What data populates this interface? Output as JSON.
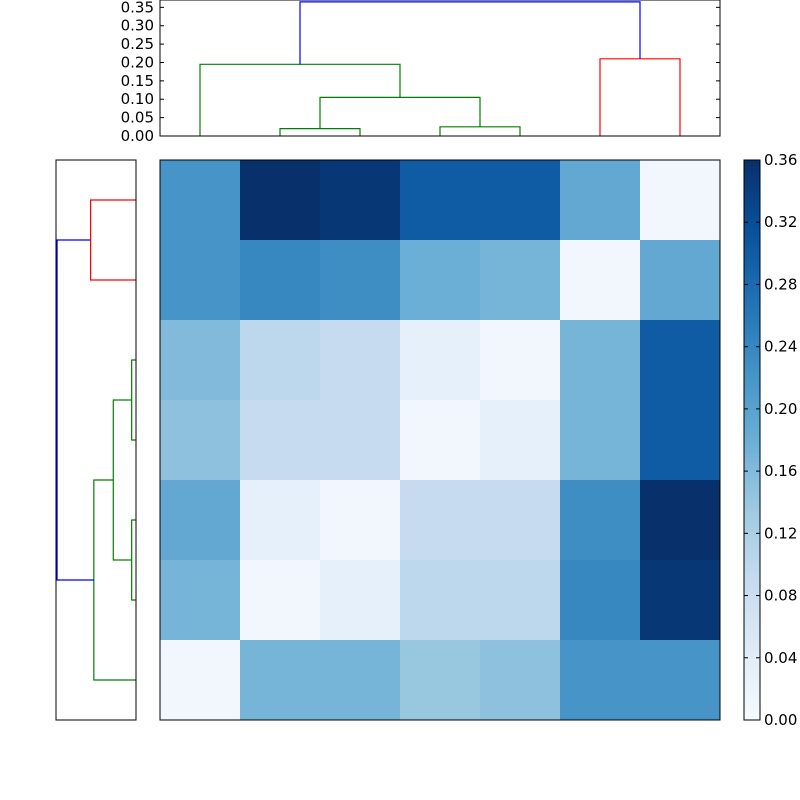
{
  "chart_data": [
    {
      "type": "heatmap",
      "title": "",
      "colormap": "Blues",
      "vmin": 0.0,
      "vmax": 0.36,
      "rows": 7,
      "cols": 7,
      "values": [
        [
          0.22,
          0.36,
          0.35,
          0.3,
          0.3,
          0.19,
          0.01
        ],
        [
          0.22,
          0.24,
          0.23,
          0.18,
          0.17,
          0.01,
          0.19
        ],
        [
          0.16,
          0.1,
          0.09,
          0.03,
          0.01,
          0.17,
          0.3
        ],
        [
          0.15,
          0.09,
          0.09,
          0.01,
          0.03,
          0.17,
          0.3
        ],
        [
          0.19,
          0.03,
          0.01,
          0.09,
          0.09,
          0.23,
          0.36
        ],
        [
          0.17,
          0.01,
          0.03,
          0.1,
          0.1,
          0.24,
          0.35
        ],
        [
          0.01,
          0.17,
          0.17,
          0.14,
          0.15,
          0.22,
          0.22
        ]
      ]
    },
    {
      "type": "dendrogram",
      "orientation": "top",
      "ylim": [
        0,
        0.37
      ],
      "yticks": [
        "0.00",
        "0.05",
        "0.10",
        "0.15",
        "0.20",
        "0.25",
        "0.30",
        "0.35"
      ],
      "ytick_values": [
        0.0,
        0.05,
        0.1,
        0.15,
        0.2,
        0.25,
        0.3,
        0.35
      ],
      "links": [
        {
          "x": [
            1.5,
            2.5
          ],
          "y_left": 0.0,
          "y_right": 0.0,
          "height": 0.02,
          "color": "#008000"
        },
        {
          "x": [
            3.5,
            4.5
          ],
          "y_left": 0.0,
          "y_right": 0.0,
          "height": 0.025,
          "color": "#008000"
        },
        {
          "x": [
            2.0,
            4.0
          ],
          "y_left": 0.02,
          "y_right": 0.025,
          "height": 0.105,
          "color": "#008000"
        },
        {
          "x": [
            0.5,
            3.0
          ],
          "y_left": 0.0,
          "y_right": 0.105,
          "height": 0.195,
          "color": "#008000"
        },
        {
          "x": [
            5.5,
            6.5
          ],
          "y_left": 0.0,
          "y_right": 0.0,
          "height": 0.21,
          "color": "#ff0000"
        },
        {
          "x": [
            1.75,
            6.0
          ],
          "y_left": 0.195,
          "y_right": 0.21,
          "height": 0.365,
          "color": "#0000ff"
        }
      ]
    },
    {
      "type": "dendrogram",
      "orientation": "left",
      "xlim": [
        0,
        0.37
      ],
      "links": [
        {
          "rows": [
            0.5,
            1.5
          ],
          "d_top": 0.0,
          "d_bottom": 0.0,
          "height": 0.21,
          "color": "#ff0000"
        },
        {
          "rows": [
            2.5,
            3.5
          ],
          "d_top": 0.0,
          "d_bottom": 0.0,
          "height": 0.02,
          "color": "#008000"
        },
        {
          "rows": [
            4.5,
            5.5
          ],
          "d_top": 0.0,
          "d_bottom": 0.0,
          "height": 0.02,
          "color": "#008000"
        },
        {
          "rows": [
            3.0,
            5.0
          ],
          "d_top": 0.02,
          "d_bottom": 0.02,
          "height": 0.105,
          "color": "#008000"
        },
        {
          "rows": [
            4.0,
            6.5
          ],
          "d_top": 0.105,
          "d_bottom": 0.0,
          "height": 0.195,
          "color": "#008000"
        },
        {
          "rows": [
            1.0,
            5.25
          ],
          "d_top": 0.21,
          "d_bottom": 0.195,
          "height": 0.365,
          "color": "#0000ff"
        }
      ]
    },
    {
      "type": "colorbar",
      "vmin": 0.0,
      "vmax": 0.36,
      "ticks": [
        "0.00",
        "0.04",
        "0.08",
        "0.12",
        "0.16",
        "0.20",
        "0.24",
        "0.28",
        "0.32",
        "0.36"
      ],
      "tick_values": [
        0.0,
        0.04,
        0.08,
        0.12,
        0.16,
        0.2,
        0.24,
        0.28,
        0.32,
        0.36
      ]
    }
  ]
}
